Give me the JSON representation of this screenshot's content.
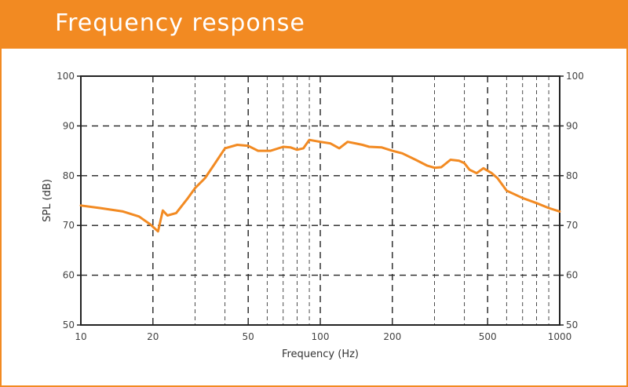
{
  "header": {
    "title": "Frequency response"
  },
  "colors": {
    "accent": "#f28a22",
    "curve": "#f28a22",
    "grid": "#222222",
    "axis": "#222222"
  },
  "chart_data": {
    "type": "line",
    "title": "Frequency response",
    "xlabel": "Frequency (Hz)",
    "ylabel": "SPL (dB)",
    "xscale": "log",
    "xlim": [
      10,
      1000
    ],
    "ylim": [
      50,
      100
    ],
    "x_ticks": [
      10,
      20,
      50,
      100,
      200,
      500,
      1000
    ],
    "x_tick_labels": [
      "10",
      "20",
      "50",
      "100",
      "200",
      "500",
      "1000"
    ],
    "x_major_grid": [
      20,
      50,
      100,
      200,
      500
    ],
    "x_minor_grid": [
      30,
      40,
      60,
      70,
      80,
      90,
      300,
      400,
      600,
      700,
      800,
      900
    ],
    "y_ticks": [
      50,
      60,
      70,
      80,
      90,
      100
    ],
    "y_tick_labels": [
      "50",
      "60",
      "70",
      "80",
      "90",
      "100"
    ],
    "grid": true,
    "legend": "none",
    "series": [
      {
        "x": [
          10,
          12,
          15,
          17.5,
          19.5,
          21,
          22,
          23,
          25,
          28,
          30,
          33,
          36,
          40,
          45,
          50,
          55,
          62,
          70,
          75,
          80,
          85,
          90,
          100,
          110,
          120,
          130,
          140,
          150,
          160,
          180,
          200,
          220,
          250,
          280,
          300,
          320,
          350,
          380,
          400,
          420,
          450,
          480,
          520,
          550,
          600,
          700,
          800,
          900,
          1000
        ],
        "y": [
          74,
          73.5,
          72.8,
          71.8,
          70.2,
          68.8,
          73,
          72,
          72.5,
          75.5,
          77.5,
          79.5,
          82.2,
          85.5,
          86.2,
          86,
          85,
          85,
          85.8,
          85.7,
          85.2,
          85.5,
          87.2,
          86.8,
          86.5,
          85.5,
          86.8,
          86.5,
          86.2,
          85.8,
          85.7,
          85,
          84.5,
          83.2,
          82,
          81.6,
          81.7,
          83.2,
          83,
          82.5,
          81.2,
          80.5,
          81.5,
          80.5,
          79.5,
          77,
          75.5,
          74.5,
          73.5,
          72.8
        ]
      }
    ]
  }
}
